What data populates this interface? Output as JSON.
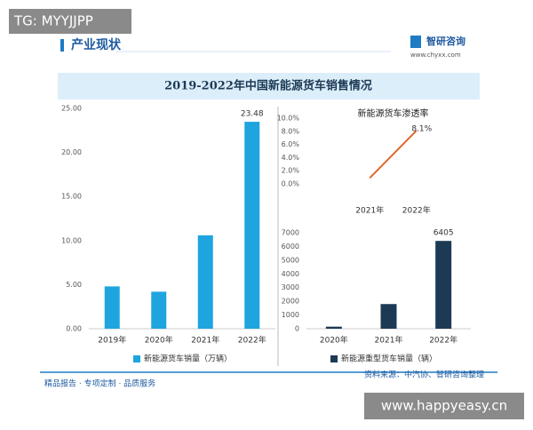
{
  "watermark_top": "TG: MYYJJPP",
  "header": {
    "section": "产业现状",
    "brand": "智研咨询",
    "url": "www.chyxx.com"
  },
  "banner_title": "2019-2022年中国新能源货车销售情况",
  "chart_data": [
    {
      "type": "bar",
      "categories": [
        "2019年",
        "2020年",
        "2021年",
        "2022年"
      ],
      "series": [
        {
          "name": "新能源货车销量（万辆）",
          "color": "#1ea5e0",
          "values": [
            4.8,
            4.2,
            10.6,
            23.48
          ],
          "value_labels": [
            null,
            null,
            null,
            "23.48"
          ]
        }
      ],
      "ylim": [
        0,
        25
      ],
      "yticks": [
        {
          "value": 0,
          "label": "0.00"
        },
        {
          "value": 5,
          "label": "5.00"
        },
        {
          "value": 10,
          "label": "10.00"
        },
        {
          "value": 15,
          "label": "15.00"
        },
        {
          "value": 20,
          "label": "20.00"
        },
        {
          "value": 25,
          "label": "25.00"
        }
      ]
    },
    {
      "type": "line",
      "title": "新能源货车渗透率",
      "categories": [
        "2021年",
        "2022年"
      ],
      "values": [
        0.9,
        8.1
      ],
      "value_labels": [
        null,
        "8.1%"
      ],
      "color": "#e0672a",
      "ylim": [
        0,
        10
      ],
      "yticks": [
        {
          "value": 0,
          "label": "0.0%"
        },
        {
          "value": 2,
          "label": "2.0%"
        },
        {
          "value": 4,
          "label": "4.0%"
        },
        {
          "value": 6,
          "label": "6.0%"
        },
        {
          "value": 8,
          "label": "8.0%"
        },
        {
          "value": 10,
          "label": "10.0%"
        }
      ]
    },
    {
      "type": "bar",
      "categories": [
        "2020年",
        "2021年",
        "2022年"
      ],
      "series": [
        {
          "name": "新能源重型货车销量（辆）",
          "color": "#1d3a55",
          "values": [
            150,
            1800,
            6405
          ]
        }
      ],
      "ylim": [
        0,
        7000
      ],
      "yticks": [
        0,
        1000,
        2000,
        3000,
        4000,
        5000,
        6000,
        7000
      ]
    }
  ],
  "footer": {
    "slogan": "精品报告 · 专项定制 · 品质服务",
    "source": "资料来源：中汽协、智研咨询整理"
  },
  "watermark_bottom": "www.happyeasy.cn"
}
